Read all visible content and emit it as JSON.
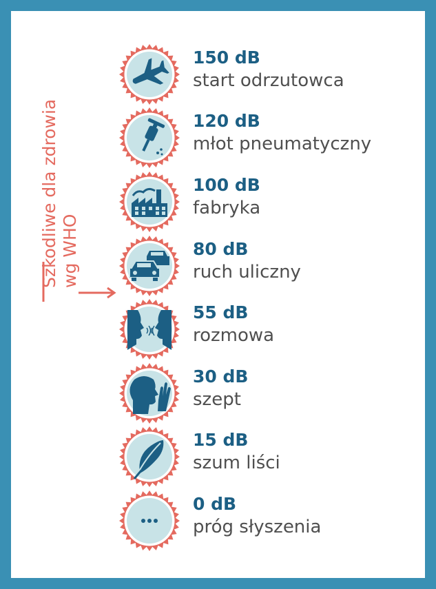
{
  "colors": {
    "frame": "#3a90b4",
    "accent_red": "#e46a5f",
    "badge_fill": "#c8e3e7",
    "icon_dark": "#1c5f84",
    "value_text": "#1c5f84",
    "desc_text": "#4f4f4f"
  },
  "who_label": {
    "line1": "Szkodliwe dla zdrowia",
    "line2": "wg WHO"
  },
  "levels": [
    {
      "value": "150 dB",
      "label": "start odrzutowca",
      "icon": "airplane-icon"
    },
    {
      "value": "120 dB",
      "label": "młot pneumatyczny",
      "icon": "jackhammer-icon"
    },
    {
      "value": "100 dB",
      "label": "fabryka",
      "icon": "factory-icon"
    },
    {
      "value": "80 dB",
      "label": "ruch uliczny",
      "icon": "traffic-cars-icon"
    },
    {
      "value": "55 dB",
      "label": "rozmowa",
      "icon": "conversation-icon"
    },
    {
      "value": "30 dB",
      "label": "szept",
      "icon": "whisper-icon"
    },
    {
      "value": "15 dB",
      "label": "szum liści",
      "icon": "leaf-icon"
    },
    {
      "value": "0 dB",
      "label": "próg słyszenia",
      "icon": "ellipsis-icon"
    }
  ]
}
